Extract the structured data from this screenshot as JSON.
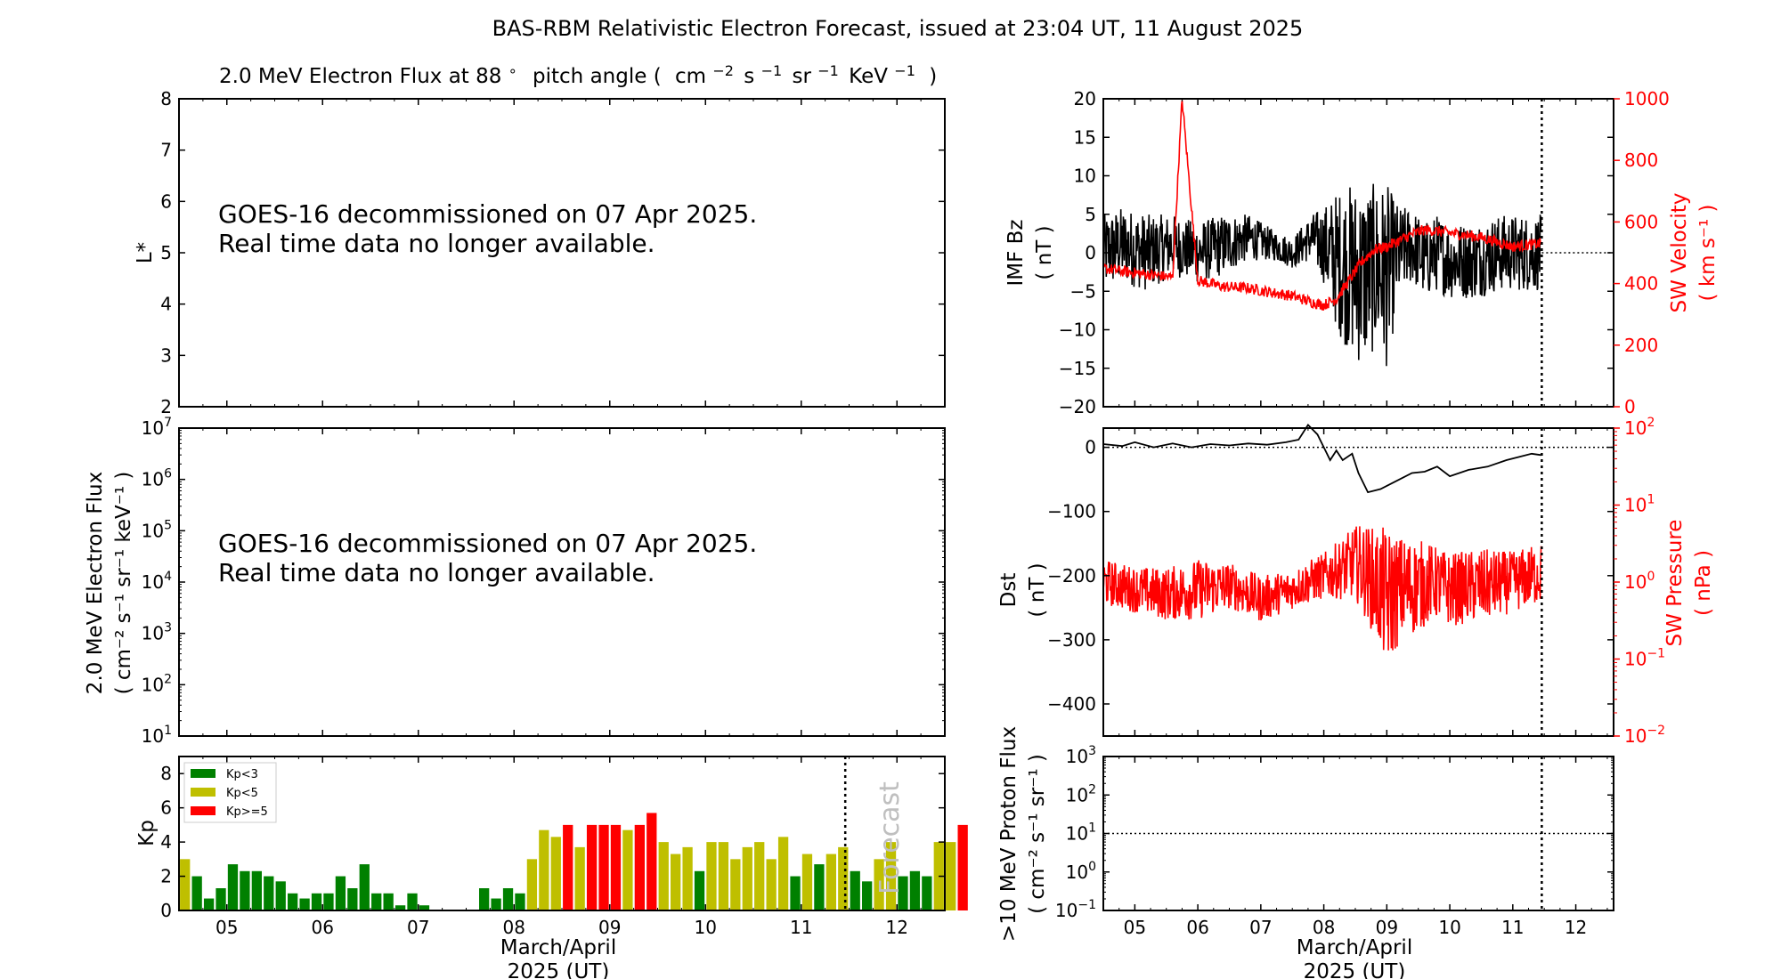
{
  "figure_title": "BAS-RBM Relativistic Electron Forecast, issued at 23:04 UT, 11 August 2025",
  "colors": {
    "black": "#000000",
    "red": "#ff0000",
    "kp_low": "#008000",
    "kp_mid": "#bfbf00",
    "kp_high": "#ff0000",
    "forecast_text": "#bfbfbf"
  },
  "shared_x": {
    "tick_labels": [
      "05",
      "06",
      "07",
      "08",
      "09",
      "10",
      "11",
      "12"
    ],
    "label_line1": "March/April",
    "label_line2": "2025 (UT)",
    "xlim": [
      4.5,
      12.5
    ],
    "now_marker": 11.46
  },
  "chart_data": [
    {
      "id": "lstar_panel",
      "type": "heatmap",
      "title_pre": "2.0 MeV Electron Flux at 88",
      "title_deg": "∘",
      "title_mid": "pitch angle (",
      "title_unit1": "cm",
      "title_exp1": "−2",
      "title_unit2": "s",
      "title_exp2": "−1",
      "title_unit3": "sr",
      "title_exp3": "−1",
      "title_unit4": "KeV",
      "title_exp4": "−1",
      "title_post": ")",
      "ylabel": "L*",
      "ylim": [
        2,
        8
      ],
      "yticks": [
        "2",
        "3",
        "4",
        "5",
        "6",
        "7",
        "8"
      ],
      "message_line1": "GOES-16 decommissioned on 07 Apr 2025.",
      "message_line2": "Real time data no longer available."
    },
    {
      "id": "flux_panel",
      "type": "line",
      "ylabel_line1": "2.0 MeV Electron Flux",
      "ylabel_line2": "( cm⁻² s⁻¹ sr⁻¹ keV⁻¹ )",
      "yscale": "log",
      "ylim": [
        10,
        10000000
      ],
      "ytick_exponents": [
        "1",
        "2",
        "3",
        "4",
        "5",
        "6",
        "7"
      ],
      "ytick_base": "10",
      "message_line1": "GOES-16 decommissioned on 07 Apr 2025.",
      "message_line2": "Real time data no longer available."
    },
    {
      "id": "kp_panel",
      "type": "bar",
      "ylabel": "Kp",
      "ylim": [
        0,
        9
      ],
      "yticks": [
        "0",
        "2",
        "4",
        "6",
        "8"
      ],
      "legend": [
        "Kp<3",
        "Kp<5",
        "Kp>=5"
      ],
      "legend_position": "top-left",
      "forecast_label": "Forecast",
      "bin_hours": 3,
      "start_day": 4.5,
      "values": [
        3.0,
        2.0,
        0.7,
        1.3,
        2.7,
        2.3,
        2.3,
        2.0,
        1.7,
        1.0,
        0.7,
        1.0,
        1.0,
        2.0,
        1.3,
        2.7,
        1.0,
        1.0,
        0.3,
        1.0,
        0.3,
        0,
        0,
        0,
        0,
        1.3,
        0.7,
        1.3,
        1.0,
        3.0,
        4.7,
        4.3,
        5.0,
        3.7,
        5.0,
        5.0,
        5.0,
        4.7,
        5.0,
        5.7,
        4.0,
        3.3,
        3.7,
        2.3,
        4.0,
        4.0,
        3.0,
        3.7,
        4.0,
        3.0,
        4.3,
        2.0,
        3.3,
        2.7,
        3.3,
        3.7,
        2.3,
        1.7,
        3.0,
        4.0,
        2.0,
        2.3,
        2.0,
        4.0,
        4.0,
        5.0
      ]
    },
    {
      "id": "imf_panel",
      "type": "line",
      "ylabel_line1": "IMF Bz",
      "ylabel_line2": "( nT )",
      "ylim": [
        -20,
        20
      ],
      "yticks": [
        "−20",
        "−15",
        "−10",
        "−5",
        "0",
        "5",
        "10",
        "15",
        "20"
      ],
      "y2label_line1": "SW Velocity",
      "y2label_line2": "( km s⁻¹ )",
      "y2lim": [
        0,
        1000
      ],
      "y2ticks": [
        "0",
        "200",
        "400",
        "600",
        "800",
        "1000"
      ],
      "series": [
        {
          "name": "IMF Bz",
          "x": [
            4.5,
            4.8,
            5.2,
            5.6,
            6.0,
            6.4,
            6.8,
            7.2,
            7.5,
            7.8,
            8.0,
            8.2,
            8.4,
            8.6,
            8.8,
            9.0,
            9.2,
            9.4,
            9.6,
            9.8,
            10.0,
            10.4,
            10.8,
            11.2,
            11.45
          ],
          "y": [
            0,
            1,
            0,
            1,
            0,
            1,
            2,
            1,
            0,
            2,
            1,
            -1,
            -2,
            -3,
            -2,
            -3,
            0,
            1,
            -1,
            0,
            -1,
            -1,
            0,
            0,
            0
          ],
          "spread": [
            5,
            5,
            5,
            4,
            4,
            4,
            3,
            2,
            2,
            3,
            5,
            9,
            11,
            12,
            11,
            12,
            6,
            5,
            5,
            5,
            5,
            5,
            5,
            5,
            5
          ]
        },
        {
          "name": "SW Velocity",
          "x": [
            4.5,
            4.8,
            5.2,
            5.6,
            5.75,
            6.0,
            6.4,
            6.8,
            7.2,
            7.5,
            7.8,
            8.0,
            8.2,
            8.4,
            8.6,
            8.8,
            9.0,
            9.2,
            9.4,
            9.6,
            9.8,
            10.0,
            10.5,
            11.0,
            11.45
          ],
          "y": [
            450,
            440,
            430,
            420,
            1000,
            410,
            390,
            385,
            370,
            360,
            340,
            330,
            350,
            410,
            470,
            510,
            520,
            540,
            560,
            575,
            570,
            565,
            550,
            520,
            530
          ]
        }
      ]
    },
    {
      "id": "dst_panel",
      "type": "line",
      "ylabel_line1": "Dst",
      "ylabel_line2": "( nT )",
      "ylim": [
        -450,
        30
      ],
      "yticks": [
        "−400",
        "−300",
        "−200",
        "−100",
        "0"
      ],
      "y2label_line1": "SW Pressure",
      "y2label_line2": "( nPa )",
      "y2scale": "log",
      "y2lim": [
        0.01,
        100
      ],
      "y2tick_exponents": [
        "−2",
        "−1",
        "0",
        "1",
        "2"
      ],
      "y2tick_base": "10",
      "series": [
        {
          "name": "Dst",
          "x": [
            4.5,
            4.8,
            5.0,
            5.3,
            5.6,
            5.9,
            6.2,
            6.5,
            6.8,
            7.1,
            7.4,
            7.6,
            7.75,
            7.9,
            8.0,
            8.1,
            8.2,
            8.3,
            8.45,
            8.55,
            8.7,
            8.9,
            9.0,
            9.2,
            9.4,
            9.6,
            9.8,
            10.0,
            10.3,
            10.6,
            10.9,
            11.1,
            11.3,
            11.45
          ],
          "y": [
            5,
            2,
            8,
            0,
            6,
            0,
            5,
            3,
            6,
            4,
            8,
            12,
            35,
            20,
            0,
            -20,
            -5,
            -20,
            -10,
            -40,
            -70,
            -65,
            -60,
            -50,
            -40,
            -38,
            -30,
            -45,
            -35,
            -30,
            -20,
            -15,
            -10,
            -12
          ]
        },
        {
          "name": "SW Pressure",
          "x": [
            4.5,
            5.0,
            5.5,
            6.0,
            6.5,
            7.0,
            7.5,
            8.0,
            8.3,
            8.5,
            8.8,
            9.0,
            9.2,
            9.5,
            9.75,
            10.0,
            10.5,
            11.0,
            11.45
          ],
          "y": [
            1.0,
            0.8,
            0.7,
            0.8,
            0.9,
            0.6,
            0.8,
            1.2,
            1.5,
            1.8,
            1.0,
            0.6,
            0.8,
            0.9,
            1.0,
            0.8,
            0.9,
            1.0,
            1.3
          ],
          "spread": [
            2.0,
            2.0,
            2.2,
            2.5,
            2.0,
            2.0,
            1.8,
            2.0,
            2.5,
            3.0,
            5.0,
            8.0,
            5.0,
            4.0,
            3.0,
            3.0,
            3.0,
            2.5,
            2.5
          ]
        }
      ]
    },
    {
      "id": "proton_panel",
      "type": "line",
      "ylabel_line1": ">10 MeV Proton Flux",
      "ylabel_line2": "( cm⁻² s⁻¹ sr⁻¹ )",
      "yscale": "log",
      "ylim": [
        0.1,
        1000
      ],
      "ytick_exponents": [
        "−1",
        "0",
        "1",
        "2",
        "3"
      ],
      "ytick_base": "10",
      "threshold": 10
    }
  ]
}
